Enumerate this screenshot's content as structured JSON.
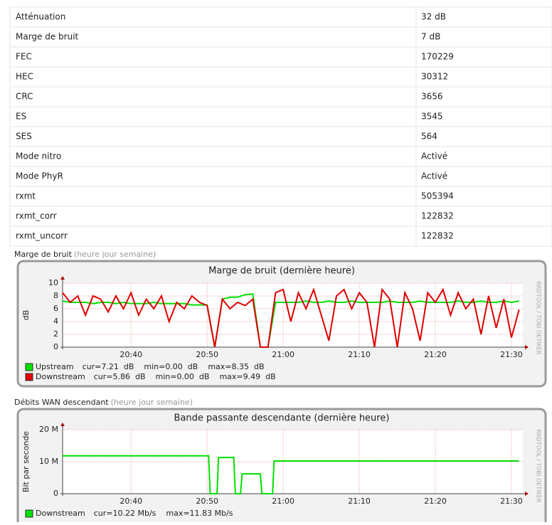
{
  "table": {
    "rows": [
      [
        "Atténuation",
        "32 dB"
      ],
      [
        "Marge de bruit",
        "7 dB"
      ],
      [
        "FEC",
        "170229"
      ],
      [
        "HEC",
        "30312"
      ],
      [
        "CRC",
        "3656"
      ],
      [
        "ES",
        "3545"
      ],
      [
        "SES",
        "564"
      ],
      [
        "Mode nitro",
        "Activé"
      ],
      [
        "Mode PhyR",
        "Activé"
      ],
      [
        "rxmt",
        "505394"
      ],
      [
        "rxmt_corr",
        "122832"
      ],
      [
        "rxmt_uncorr",
        "122832"
      ]
    ]
  },
  "sections": [
    {
      "label": "Marge de bruit",
      "links": "(heure jour semaine)"
    },
    {
      "label": "Débits WAN descendant",
      "links": "(heure jour semaine)"
    }
  ],
  "chart_data": [
    {
      "type": "line",
      "title": "Marge de bruit (dernière heure)",
      "y_label": "dB",
      "watermark": "RRDTOOL / TOBI OETIKER",
      "x": [
        1231,
        1232,
        1233,
        1234,
        1235,
        1236,
        1237,
        1238,
        1239,
        1240,
        1241,
        1242,
        1243,
        1244,
        1245,
        1246,
        1247,
        1248,
        1249,
        1250,
        1251,
        1252,
        1253,
        1254,
        1255,
        1256,
        1257,
        1258,
        1259,
        1260,
        1261,
        1262,
        1263,
        1264,
        1265,
        1266,
        1267,
        1268,
        1269,
        1270,
        1271,
        1272,
        1273,
        1274,
        1275,
        1276,
        1277,
        1278,
        1279,
        1280,
        1281,
        1282,
        1283,
        1284,
        1285,
        1286,
        1287,
        1288,
        1289,
        1290,
        1291
      ],
      "xlim": [
        1231,
        1291.5
      ],
      "xticks": [
        {
          "value": 1240,
          "label": "20:40"
        },
        {
          "value": 1250,
          "label": "20:50"
        },
        {
          "value": 1260,
          "label": "21:00"
        },
        {
          "value": 1270,
          "label": "21:10"
        },
        {
          "value": 1280,
          "label": "21:20"
        },
        {
          "value": 1290,
          "label": "21:30"
        }
      ],
      "ylim": [
        0,
        10
      ],
      "yticks": [
        0,
        2,
        4,
        6,
        8,
        10
      ],
      "grid": true,
      "series": [
        {
          "name": "Upstream",
          "color": "#00e000",
          "legend_stats": "cur=7.21  dB    min=0.00  dB    max=8.35  dB",
          "values": [
            7.2,
            7,
            7,
            7,
            6.8,
            7,
            7,
            6.8,
            7,
            6.8,
            6.8,
            6.8,
            7,
            6.8,
            6.8,
            6.8,
            6.8,
            6.6,
            6.6,
            6.6,
            0,
            7.5,
            7.8,
            7.8,
            8.2,
            8.3,
            0,
            0,
            7,
            7,
            7,
            7,
            7.2,
            7,
            7,
            7.2,
            7,
            7,
            7.2,
            7,
            7,
            7,
            7,
            7.2,
            7,
            7,
            7,
            7.2,
            7,
            7,
            7,
            7,
            7.2,
            7,
            7,
            7.2,
            7,
            7,
            7.2,
            7,
            7.21
          ]
        },
        {
          "name": "Downstream",
          "color": "#e00000",
          "legend_stats": "cur=5.86  dB    min=0.00  dB    max=9.49  dB",
          "values": [
            8.5,
            7,
            8,
            5,
            8,
            7.5,
            5.5,
            8,
            6,
            8.5,
            5,
            7.5,
            6,
            8,
            4,
            7,
            6,
            8,
            7,
            6.5,
            0,
            7.5,
            6,
            7,
            6.5,
            7.5,
            0,
            0,
            8.5,
            9,
            4,
            8.5,
            6,
            9,
            5,
            1,
            8,
            9,
            6,
            8.5,
            7,
            0,
            9,
            7.5,
            0,
            8.5,
            6,
            1,
            8.5,
            7,
            9,
            5,
            8.5,
            6,
            7.5,
            2,
            8,
            3,
            7.5,
            1.5,
            5.86
          ]
        }
      ]
    },
    {
      "type": "line",
      "title": "Bande passante descendante (dernière heure)",
      "y_label": "Bit par seconde",
      "watermark": "RRDTOOL / TOBI OETIKER",
      "x": [
        1231,
        1250.2,
        1250.4,
        1251.3,
        1251.5,
        1253.5,
        1253.7,
        1254.4,
        1254.6,
        1257,
        1257.2,
        1258.6,
        1258.8,
        1291
      ],
      "xlim": [
        1231,
        1291.5
      ],
      "xticks": [
        {
          "value": 1240,
          "label": "20:40"
        },
        {
          "value": 1250,
          "label": "20:50"
        },
        {
          "value": 1260,
          "label": "21:00"
        },
        {
          "value": 1270,
          "label": "21:10"
        },
        {
          "value": 1280,
          "label": "21:20"
        },
        {
          "value": 1290,
          "label": "21:30"
        }
      ],
      "ylim": [
        0,
        20000000
      ],
      "yticks": [
        0,
        {
          "value": 10000000,
          "label": "10 M"
        },
        {
          "value": 20000000,
          "label": "20 M"
        }
      ],
      "grid": true,
      "series": [
        {
          "name": "Downstream",
          "color": "#00e000",
          "legend_stats": "cur=10.22 Mb/s    max=11.83 Mb/s",
          "values": [
            11830000,
            11830000,
            0,
            0,
            11300000,
            11300000,
            0,
            0,
            6200000,
            6200000,
            0,
            0,
            10220000,
            10220000
          ]
        }
      ]
    }
  ]
}
